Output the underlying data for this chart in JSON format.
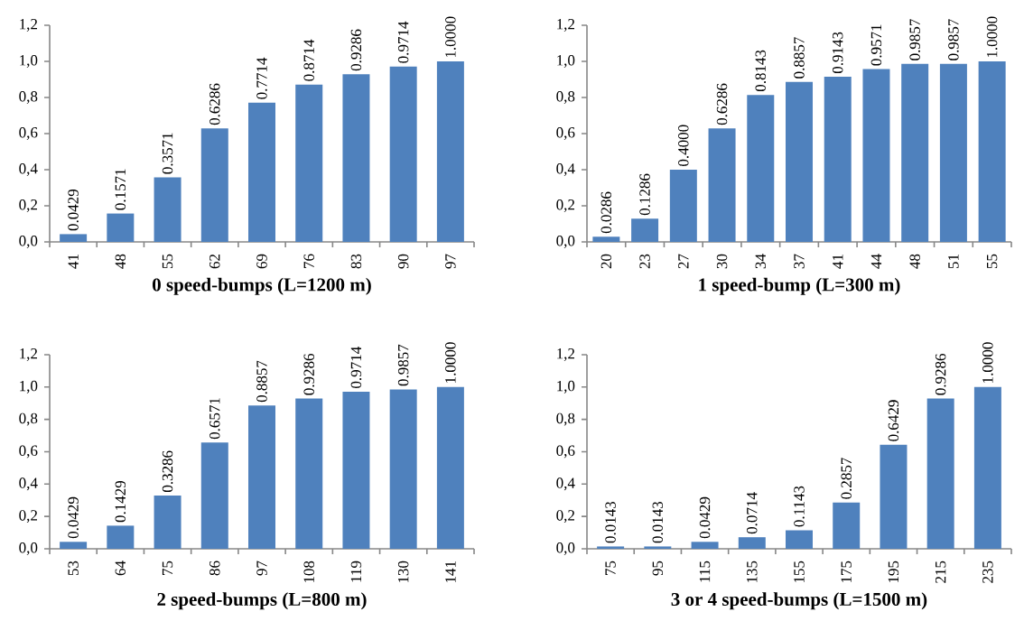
{
  "chart_data": [
    {
      "type": "bar",
      "xlabel": "0 speed-bumps (L=1200 m)",
      "categories": [
        "41",
        "48",
        "55",
        "62",
        "69",
        "76",
        "83",
        "90",
        "97"
      ],
      "values": [
        0.0429,
        0.1571,
        0.3571,
        0.6286,
        0.7714,
        0.8714,
        0.9286,
        0.9714,
        1.0
      ],
      "value_labels": [
        "0.0429",
        "0.1571",
        "0.3571",
        "0.6286",
        "0.7714",
        "0.8714",
        "0.9286",
        "0.9714",
        "1.0000"
      ],
      "color": "#4f81bd",
      "ylim": [
        0,
        1.2
      ],
      "yticks": [
        {
          "value": 0,
          "label": "0,0"
        },
        {
          "value": 0.2,
          "label": "0,2"
        },
        {
          "value": 0.4,
          "label": "0,4"
        },
        {
          "value": 0.6,
          "label": "0,6"
        },
        {
          "value": 0.8,
          "label": "0,8"
        },
        {
          "value": 1.0,
          "label": "1,0"
        },
        {
          "value": 1.2,
          "label": "1,2"
        }
      ]
    },
    {
      "type": "bar",
      "xlabel": "1 speed-bump (L=300 m)",
      "categories": [
        "20",
        "23",
        "27",
        "30",
        "34",
        "37",
        "41",
        "44",
        "48",
        "51",
        "55"
      ],
      "values": [
        0.0286,
        0.1286,
        0.4,
        0.6286,
        0.8143,
        0.8857,
        0.9143,
        0.9571,
        0.9857,
        0.9857,
        1.0
      ],
      "value_labels": [
        "0.0286",
        "0.1286",
        "0.4000",
        "0.6286",
        "0.8143",
        "0.8857",
        "0.9143",
        "0.9571",
        "0.9857",
        "0.9857",
        "1.0000"
      ],
      "color": "#4f81bd",
      "ylim": [
        0,
        1.2
      ],
      "yticks": [
        {
          "value": 0,
          "label": "0,0"
        },
        {
          "value": 0.2,
          "label": "0,2"
        },
        {
          "value": 0.4,
          "label": "0,4"
        },
        {
          "value": 0.6,
          "label": "0,6"
        },
        {
          "value": 0.8,
          "label": "0,8"
        },
        {
          "value": 1.0,
          "label": "1,0"
        },
        {
          "value": 1.2,
          "label": "1,2"
        }
      ]
    },
    {
      "type": "bar",
      "xlabel": "2 speed-bumps (L=800 m)",
      "categories": [
        "53",
        "64",
        "75",
        "86",
        "97",
        "108",
        "119",
        "130",
        "141"
      ],
      "values": [
        0.0429,
        0.1429,
        0.3286,
        0.6571,
        0.8857,
        0.9286,
        0.9714,
        0.9857,
        1.0
      ],
      "value_labels": [
        "0.0429",
        "0.1429",
        "0.3286",
        "0.6571",
        "0.8857",
        "0.9286",
        "0.9714",
        "0.9857",
        "1.0000"
      ],
      "color": "#4f81bd",
      "ylim": [
        0,
        1.2
      ],
      "yticks": [
        {
          "value": 0,
          "label": "0,0"
        },
        {
          "value": 0.2,
          "label": "0,2"
        },
        {
          "value": 0.4,
          "label": "0,4"
        },
        {
          "value": 0.6,
          "label": "0,6"
        },
        {
          "value": 0.8,
          "label": "0,8"
        },
        {
          "value": 1.0,
          "label": "1,0"
        },
        {
          "value": 1.2,
          "label": "1,2"
        }
      ]
    },
    {
      "type": "bar",
      "xlabel": "3 or 4 speed-bumps (L=1500 m)",
      "categories": [
        "75",
        "95",
        "115",
        "135",
        "155",
        "175",
        "195",
        "215",
        "235"
      ],
      "values": [
        0.0143,
        0.0143,
        0.0429,
        0.0714,
        0.1143,
        0.2857,
        0.6429,
        0.9286,
        1.0
      ],
      "value_labels": [
        "0.0143",
        "0.0143",
        "0.0429",
        "0.0714",
        "0.1143",
        "0.2857",
        "0.6429",
        "0.9286",
        "1.0000"
      ],
      "color": "#4f81bd",
      "ylim": [
        0,
        1.2
      ],
      "yticks": [
        {
          "value": 0,
          "label": "0,0"
        },
        {
          "value": 0.2,
          "label": "0,2"
        },
        {
          "value": 0.4,
          "label": "0,4"
        },
        {
          "value": 0.6,
          "label": "0,6"
        },
        {
          "value": 0.8,
          "label": "0,8"
        },
        {
          "value": 1.0,
          "label": "1,0"
        },
        {
          "value": 1.2,
          "label": "1,2"
        }
      ]
    }
  ]
}
